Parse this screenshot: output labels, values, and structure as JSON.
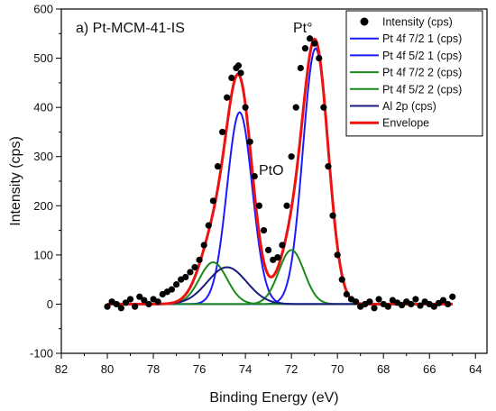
{
  "chart_data": {
    "type": "line",
    "xlabel": "Binding Energy (eV)",
    "ylabel": "Intensity (cps)",
    "xlim": [
      82,
      63.5
    ],
    "ylim": [
      -100,
      600
    ],
    "x_reversed": true,
    "xticks": [
      82,
      80,
      78,
      76,
      74,
      72,
      70,
      68,
      66,
      64
    ],
    "yticks": [
      -100,
      0,
      100,
      200,
      300,
      400,
      500,
      600
    ],
    "legend_position": "top-right",
    "annotations": [
      {
        "text": "a) Pt-MCM-41-IS"
      },
      {
        "text": "Pt°"
      },
      {
        "text": "PtO"
      }
    ],
    "series": [
      {
        "name": "Intensity (cps)",
        "kind": "scatter",
        "color": "#000000",
        "x": [
          80.0,
          79.8,
          79.6,
          79.4,
          79.2,
          79.0,
          78.8,
          78.6,
          78.4,
          78.2,
          78.0,
          77.8,
          77.6,
          77.4,
          77.2,
          77.0,
          76.8,
          76.6,
          76.4,
          76.2,
          76.0,
          75.8,
          75.6,
          75.4,
          75.2,
          75.0,
          74.8,
          74.6,
          74.4,
          74.3,
          74.2,
          74.0,
          73.8,
          73.6,
          73.4,
          73.2,
          73.0,
          72.8,
          72.6,
          72.4,
          72.2,
          72.0,
          71.8,
          71.6,
          71.4,
          71.2,
          71.0,
          70.8,
          70.6,
          70.4,
          70.2,
          70.0,
          69.8,
          69.6,
          69.4,
          69.2,
          69.0,
          68.8,
          68.6,
          68.4,
          68.2,
          68.0,
          67.8,
          67.6,
          67.4,
          67.2,
          67.0,
          66.8,
          66.6,
          66.4,
          66.2,
          66.0,
          65.8,
          65.6,
          65.4,
          65.2,
          65.0
        ],
        "y": [
          -5,
          5,
          0,
          -8,
          3,
          10,
          -5,
          15,
          8,
          0,
          10,
          5,
          20,
          25,
          30,
          40,
          50,
          55,
          65,
          75,
          90,
          120,
          160,
          210,
          280,
          350,
          420,
          460,
          480,
          485,
          470,
          400,
          330,
          260,
          200,
          150,
          110,
          90,
          95,
          120,
          200,
          300,
          400,
          480,
          520,
          540,
          530,
          500,
          400,
          280,
          180,
          100,
          50,
          20,
          10,
          5,
          -5,
          0,
          5,
          -8,
          10,
          0,
          -5,
          8,
          3,
          -2,
          5,
          0,
          10,
          -3,
          5,
          0,
          -5,
          2,
          8,
          0,
          15
        ]
      },
      {
        "name": "Pt 4f 7/2 1 (cps)",
        "kind": "gaussian",
        "color": "#1a1aff",
        "center": 70.95,
        "amplitude": 520,
        "sigma": 0.55
      },
      {
        "name": "Pt 4f 5/2 1 (cps)",
        "kind": "gaussian",
        "color": "#1a1aff",
        "center": 74.25,
        "amplitude": 390,
        "sigma": 0.55
      },
      {
        "name": "Pt 4f  7/2 2 (cps)",
        "kind": "gaussian",
        "color": "#1a8a1a",
        "center": 72.0,
        "amplitude": 110,
        "sigma": 0.55
      },
      {
        "name": "Pt 4f 5/2 2 (cps)",
        "kind": "gaussian",
        "color": "#1a8a1a",
        "center": 75.4,
        "amplitude": 85,
        "sigma": 0.6
      },
      {
        "name": "Al 2p (cps)",
        "kind": "gaussian",
        "color": "#1a1a80",
        "center": 74.8,
        "amplitude": 75,
        "sigma": 0.85
      },
      {
        "name": "Envelope",
        "kind": "envelope",
        "color": "#ee1111"
      }
    ]
  }
}
